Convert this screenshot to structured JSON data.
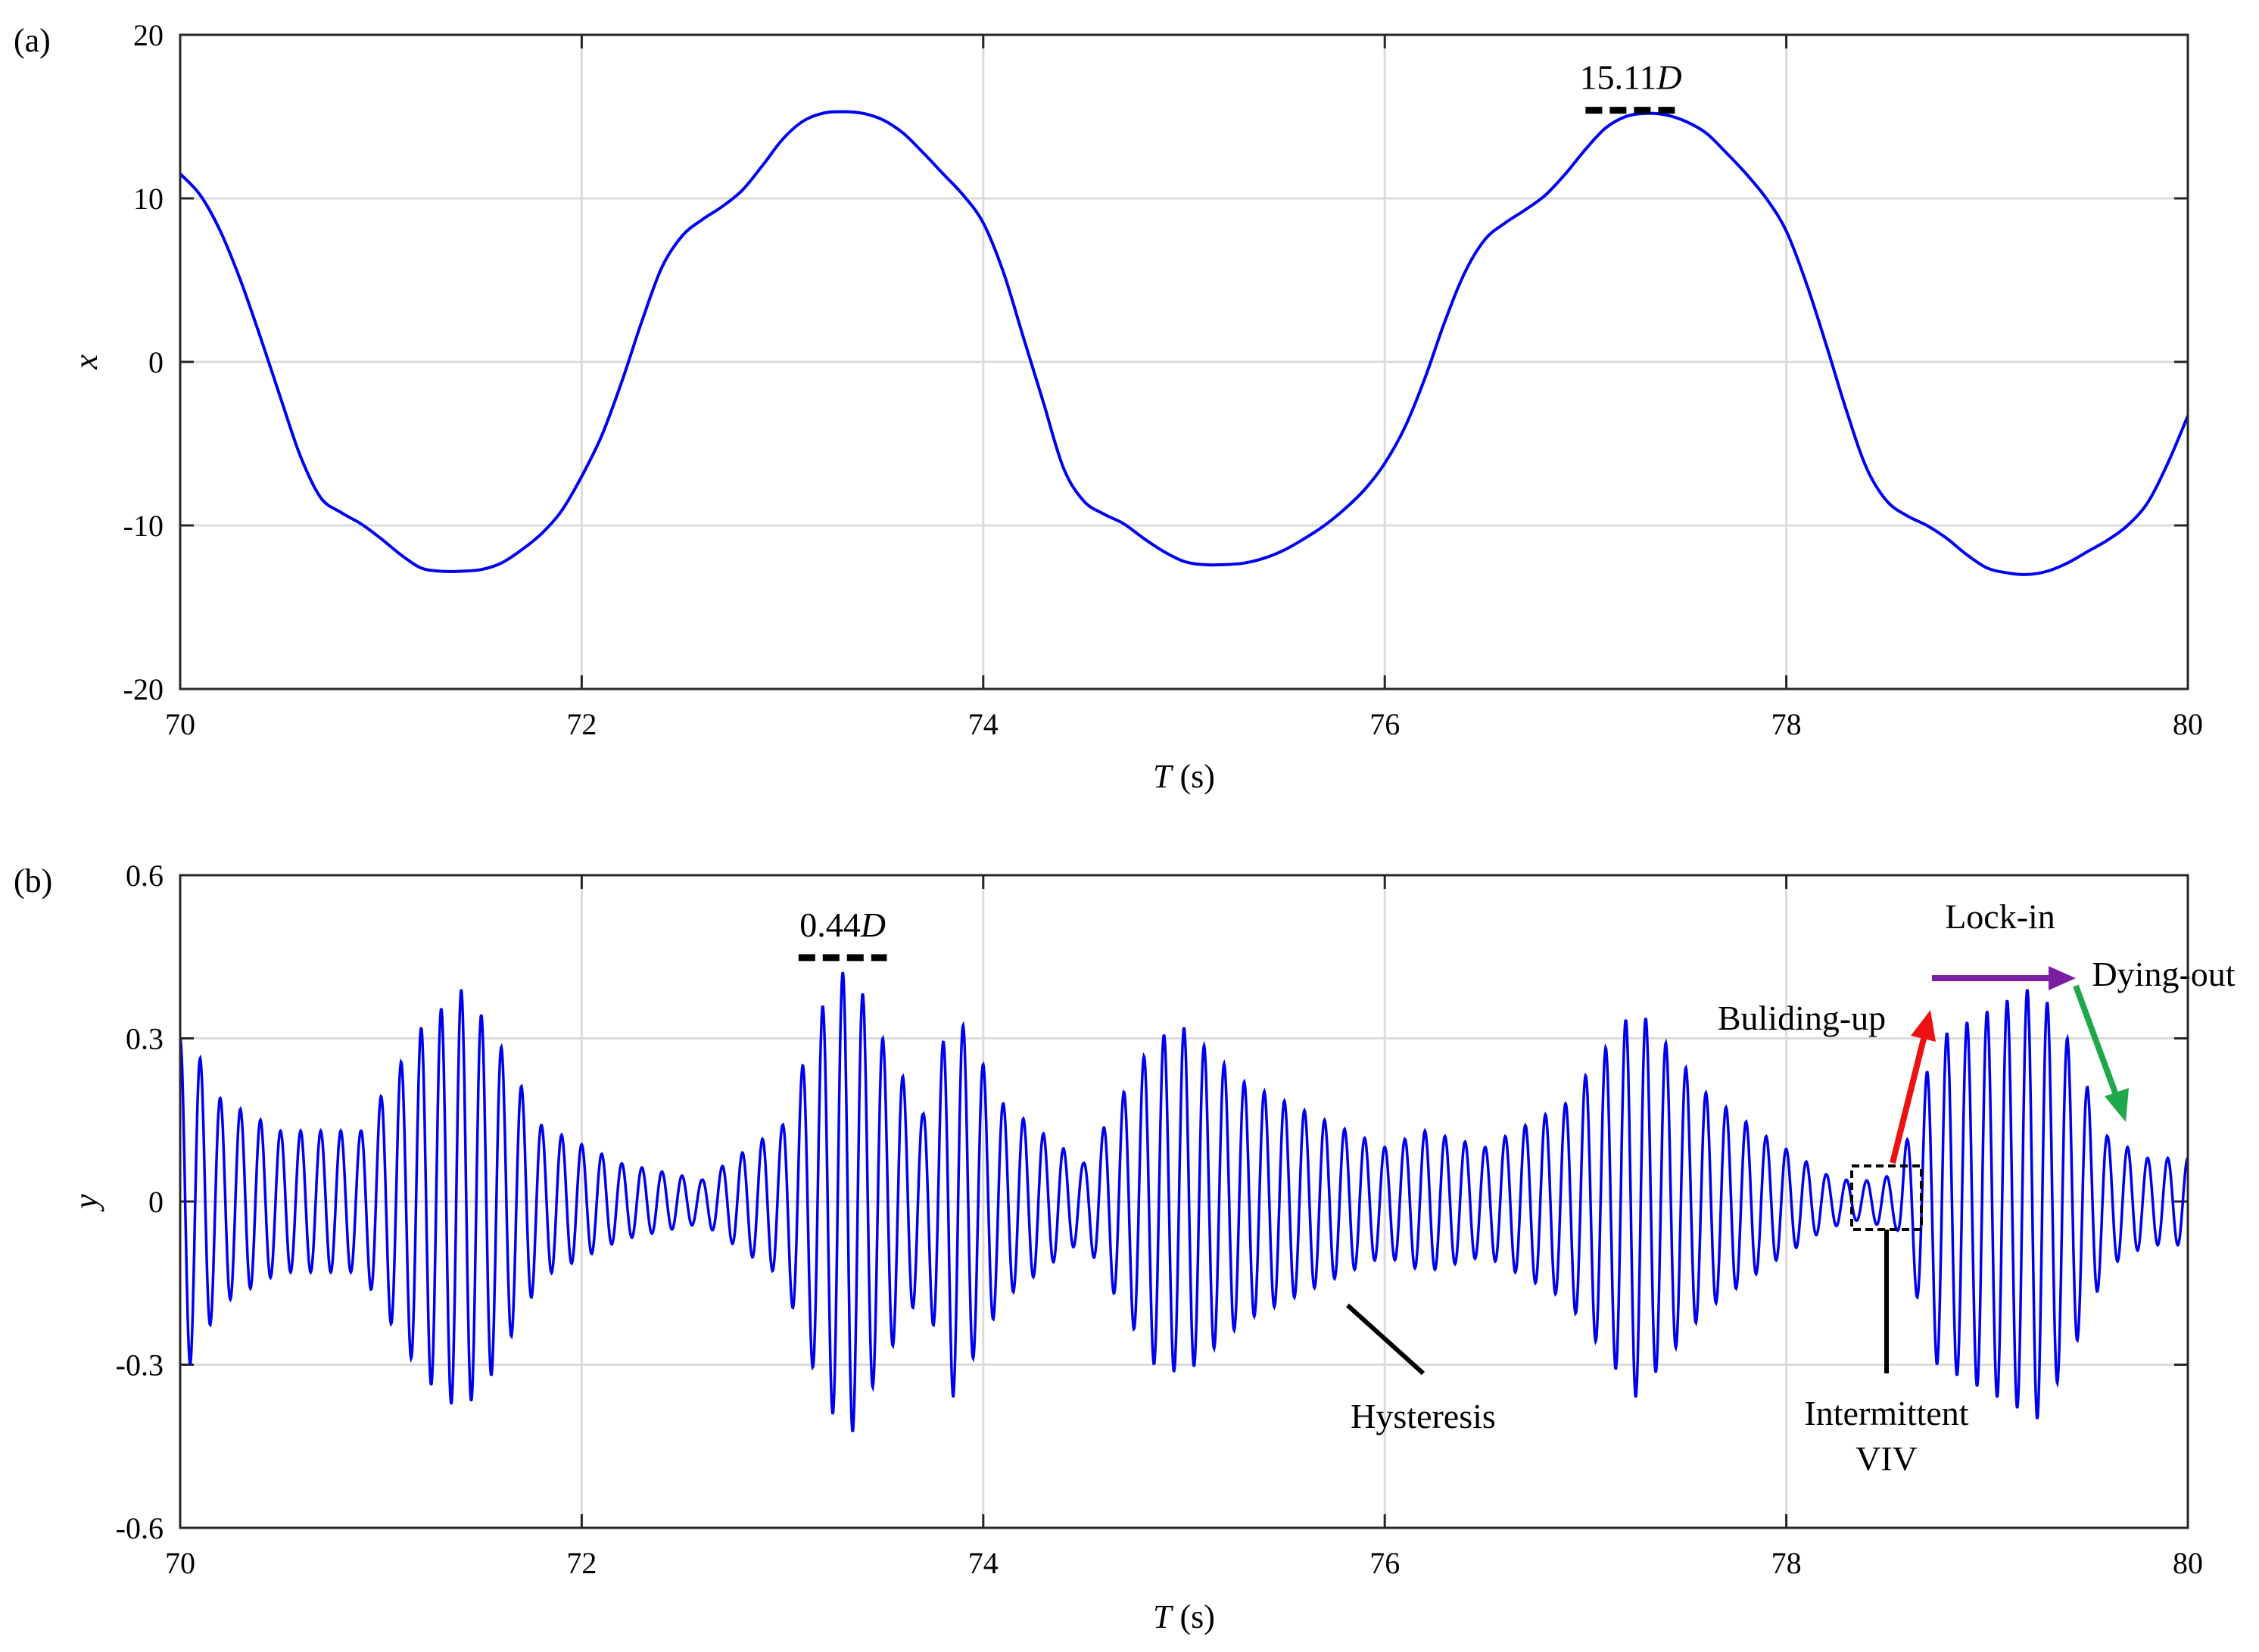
{
  "chart_data": [
    {
      "type": "line",
      "panel_label": "(a)",
      "xlabel_var": "T",
      "xlabel_unit": " (s)",
      "ylabel": "x",
      "xlim": [
        70,
        80
      ],
      "ylim": [
        -20,
        20
      ],
      "xticks": [
        70,
        72,
        74,
        76,
        78,
        80
      ],
      "yticks": [
        -20,
        -10,
        0,
        10,
        20
      ],
      "grid": true,
      "series": [
        {
          "color": "#0000ee",
          "x": [
            70.0,
            70.1,
            70.2,
            70.3,
            70.4,
            70.5,
            70.6,
            70.7,
            70.8,
            70.9,
            71.0,
            71.1,
            71.2,
            71.3,
            71.4,
            71.5,
            71.6,
            71.7,
            71.8,
            71.9,
            72.0,
            72.1,
            72.2,
            72.3,
            72.4,
            72.5,
            72.6,
            72.7,
            72.8,
            72.9,
            73.0,
            73.1,
            73.2,
            73.3,
            73.4,
            73.5,
            73.6,
            73.7,
            73.8,
            73.9,
            74.0,
            74.1,
            74.2,
            74.3,
            74.4,
            74.5,
            74.6,
            74.7,
            74.8,
            74.9,
            75.0,
            75.1,
            75.2,
            75.3,
            75.4,
            75.5,
            75.6,
            75.7,
            75.8,
            75.9,
            76.0,
            76.1,
            76.2,
            76.3,
            76.4,
            76.5,
            76.6,
            76.7,
            76.8,
            76.9,
            77.0,
            77.1,
            77.2,
            77.3,
            77.4,
            77.5,
            77.6,
            77.7,
            77.8,
            77.9,
            78.0,
            78.1,
            78.2,
            78.3,
            78.4,
            78.5,
            78.6,
            78.7,
            78.8,
            78.9,
            79.0,
            79.1,
            79.2,
            79.3,
            79.4,
            79.5,
            79.6,
            79.7,
            79.8,
            79.9,
            80.0
          ],
          "y": [
            11.5,
            10.2,
            8.0,
            5.0,
            1.5,
            -2.2,
            -5.8,
            -8.3,
            -9.2,
            -9.9,
            -10.8,
            -11.8,
            -12.6,
            -12.8,
            -12.8,
            -12.7,
            -12.3,
            -11.5,
            -10.5,
            -9.1,
            -7.0,
            -4.5,
            -1.2,
            2.5,
            5.8,
            7.7,
            8.7,
            9.5,
            10.5,
            12.0,
            13.6,
            14.7,
            15.2,
            15.3,
            15.2,
            14.8,
            14.0,
            12.8,
            11.5,
            10.2,
            8.5,
            5.5,
            1.5,
            -2.5,
            -6.5,
            -8.5,
            -9.3,
            -9.9,
            -10.8,
            -11.6,
            -12.2,
            -12.4,
            -12.4,
            -12.3,
            -12.0,
            -11.5,
            -10.8,
            -10.0,
            -9.0,
            -7.8,
            -6.2,
            -4.0,
            -1.0,
            2.5,
            5.5,
            7.5,
            8.5,
            9.3,
            10.2,
            11.5,
            13.0,
            14.3,
            15.0,
            15.2,
            15.1,
            14.7,
            14.0,
            12.8,
            11.5,
            10.0,
            8.0,
            4.8,
            1.0,
            -3.0,
            -6.5,
            -8.5,
            -9.4,
            -10.0,
            -10.8,
            -11.8,
            -12.6,
            -12.9,
            -13.0,
            -12.8,
            -12.3,
            -11.6,
            -10.9,
            -10.0,
            -8.6,
            -6.2,
            -3.3
          ]
        }
      ],
      "annotations": [
        {
          "text_value": "15.11",
          "text_unit": "D",
          "x": 77.0,
          "y": 15.11,
          "x_end": 77.45
        }
      ]
    },
    {
      "type": "line",
      "panel_label": "(b)",
      "xlabel_var": "T",
      "xlabel_unit": " (s)",
      "ylabel": "y",
      "xlim": [
        70,
        80
      ],
      "ylim": [
        -0.6,
        0.6
      ],
      "xticks": [
        70,
        72,
        74,
        76,
        78,
        80
      ],
      "yticks": [
        -0.6,
        -0.3,
        0,
        0.3,
        0.6
      ],
      "grid": true,
      "period_s": 0.1,
      "series": [
        {
          "color": "#0000ee",
          "envelope_t": [
            70.0,
            70.05,
            70.2,
            70.5,
            70.9,
            71.2,
            71.4,
            71.55,
            71.8,
            72.2,
            72.6,
            73.0,
            73.2,
            73.33,
            73.5,
            73.7,
            73.85,
            74.1,
            74.5,
            74.85,
            75.0,
            75.3,
            75.7,
            76.0,
            76.2,
            76.5,
            76.9,
            77.25,
            77.6,
            77.9,
            78.2,
            78.35,
            78.55,
            78.75,
            79.0,
            79.25,
            79.4,
            79.6,
            79.8,
            80.0
          ],
          "envelope_a": [
            0.3,
            0.3,
            0.19,
            0.13,
            0.13,
            0.32,
            0.39,
            0.32,
            0.14,
            0.07,
            0.04,
            0.14,
            0.36,
            0.44,
            0.3,
            0.16,
            0.36,
            0.18,
            0.07,
            0.3,
            0.32,
            0.22,
            0.15,
            0.1,
            0.13,
            0.1,
            0.18,
            0.36,
            0.2,
            0.12,
            0.05,
            0.035,
            0.05,
            0.3,
            0.35,
            0.4,
            0.3,
            0.12,
            0.08,
            0.08
          ]
        }
      ],
      "annotations": [
        {
          "text_value": "0.44",
          "text_unit": "D",
          "x": 73.08,
          "y": 0.44,
          "x_end": 73.52
        },
        {
          "text": "Lock-in",
          "color": "#7b1fa2"
        },
        {
          "text": "Dying-out",
          "color": "#1fa84a"
        },
        {
          "text": "Buliding-up",
          "color": "#ee1111"
        },
        {
          "text": "Hysteresis",
          "color": "#000000"
        },
        {
          "text_line1": "Intermittent",
          "text_line2": "VIV",
          "color": "#000000"
        }
      ]
    }
  ]
}
